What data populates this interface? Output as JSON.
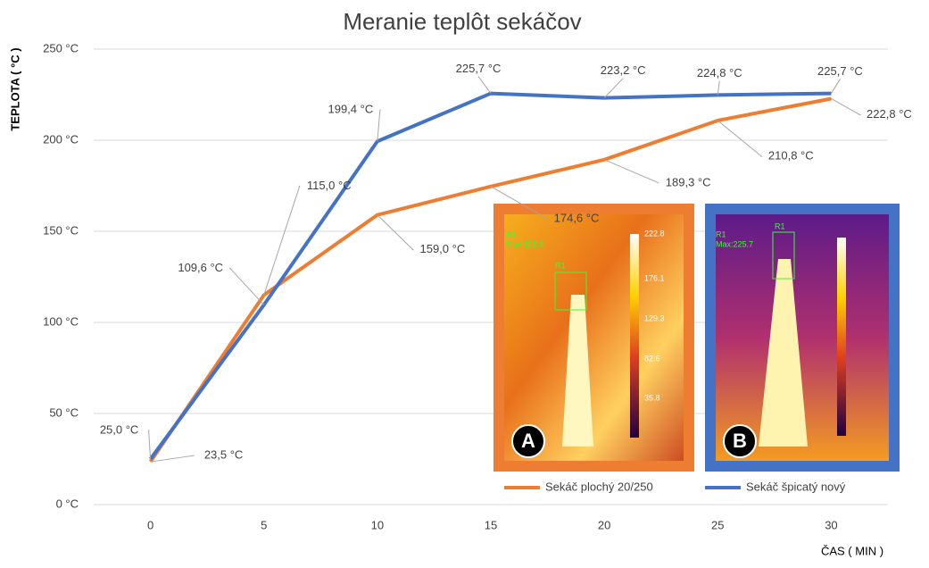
{
  "chart_data": {
    "type": "line",
    "title": "Meranie teplôt sekáčov",
    "y_label": "TEPLOTA ( °C )",
    "x_label": "ČAS ( MIN )",
    "x": [
      0,
      5,
      10,
      15,
      20,
      25,
      30
    ],
    "xlim": [
      -2.5,
      32.5
    ],
    "xticks": [
      0,
      5,
      10,
      15,
      20,
      25,
      30
    ],
    "ylim": [
      0,
      250
    ],
    "yticks": [
      {
        "value": 0,
        "label": "0 °C"
      },
      {
        "value": 50,
        "label": "50 °C"
      },
      {
        "value": 100,
        "label": "100 °C"
      },
      {
        "value": 150,
        "label": "150 °C"
      },
      {
        "value": 200,
        "label": "200 °C"
      },
      {
        "value": 250,
        "label": "250 °C"
      }
    ],
    "grid": true,
    "legend": "bottom",
    "series": [
      {
        "name": "Sekáč plochý 20/250",
        "color": "#ed7d31",
        "values": [
          23.5,
          115.0,
          159.0,
          174.6,
          189.3,
          210.8,
          222.8
        ],
        "value_labels": [
          "23,5 °C",
          "115,0 °C",
          "159,0 °C",
          "174,6 °C",
          "189,3 °C",
          "210,8 °C",
          "222,8 °C"
        ]
      },
      {
        "name": "Sekáč špicatý nový",
        "color": "#4472c4",
        "values": [
          25.0,
          109.6,
          199.4,
          225.7,
          223.2,
          224.8,
          225.7
        ],
        "value_labels": [
          "25,0 °C",
          "109,6 °C",
          "199,4 °C",
          "225,7 °C",
          "223,2 °C",
          "224,8 °C",
          "225,7 °C"
        ]
      }
    ],
    "insets": [
      {
        "label": "A",
        "color": "#ed7d31",
        "texts": [
          "R1",
          "Max:222.8",
          "R1",
          "222.8",
          "176.1",
          "129.3",
          "82.6",
          "35.8"
        ]
      },
      {
        "label": "B",
        "color": "#4472c4",
        "texts": [
          "R1",
          "Max:225.7",
          "R1"
        ]
      }
    ]
  }
}
